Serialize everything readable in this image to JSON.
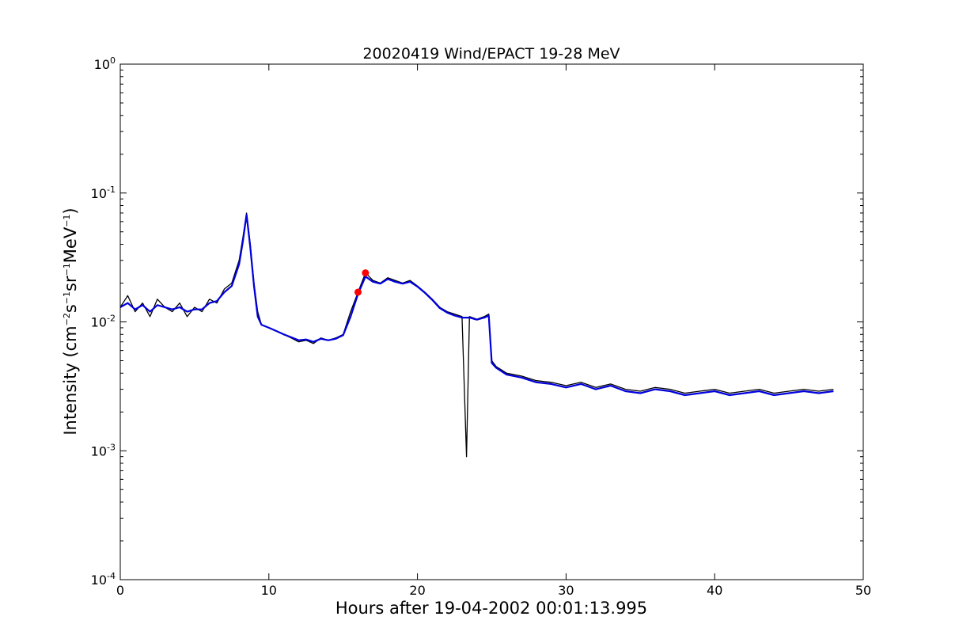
{
  "chart_data": {
    "type": "line",
    "title": "20020419 Wind/EPACT 19-28 MeV",
    "xlabel": "Hours after 19-04-2002 00:01:13.995",
    "ylabel": {
      "prefix": "Intensity (cm",
      "exp1": "−2",
      "mid1": "s",
      "exp2": "−1",
      "mid2": "sr",
      "exp3": "−1",
      "mid3": "MeV",
      "exp4": "−1",
      "suffix": ")"
    },
    "xlim": [
      0,
      50
    ],
    "ylim": [
      0.0001,
      1
    ],
    "yscale": "log",
    "grid": false,
    "xticks": [
      {
        "value": 0,
        "label": "0"
      },
      {
        "value": 10,
        "label": "10"
      },
      {
        "value": 20,
        "label": "20"
      },
      {
        "value": 30,
        "label": "30"
      },
      {
        "value": 40,
        "label": "40"
      },
      {
        "value": 50,
        "label": "50"
      }
    ],
    "yticks": [
      {
        "value": 0.0001,
        "base": "10",
        "exp": "-4"
      },
      {
        "value": 0.001,
        "base": "10",
        "exp": "-3"
      },
      {
        "value": 0.01,
        "base": "10",
        "exp": "-2"
      },
      {
        "value": 0.1,
        "base": "10",
        "exp": "-1"
      },
      {
        "value": 1,
        "base": "10",
        "exp": "0"
      }
    ],
    "series": [
      {
        "color": "#000000",
        "x": [
          0,
          0.5,
          1,
          1.5,
          2,
          2.5,
          3,
          3.5,
          4,
          4.5,
          5,
          5.5,
          6,
          6.5,
          7,
          7.5,
          8,
          8.25,
          8.5,
          8.75,
          9,
          9.25,
          9.5,
          10,
          10.5,
          11,
          11.5,
          12,
          12.5,
          13,
          13.5,
          14,
          14.5,
          15,
          15.5,
          16,
          16.5,
          17,
          17.5,
          18,
          18.5,
          19,
          19.5,
          20,
          20.5,
          21,
          21.5,
          22,
          22.5,
          23,
          23.3,
          23.5,
          24,
          24.5,
          24.8,
          25,
          25.3,
          26,
          27,
          28,
          29,
          30,
          31,
          32,
          33,
          34,
          35,
          36,
          37,
          38,
          39,
          40,
          41,
          42,
          43,
          44,
          45,
          46,
          47,
          48
        ],
        "y": [
          0.013,
          0.016,
          0.012,
          0.014,
          0.011,
          0.015,
          0.013,
          0.012,
          0.014,
          0.011,
          0.013,
          0.012,
          0.015,
          0.014,
          0.018,
          0.02,
          0.03,
          0.045,
          0.07,
          0.04,
          0.02,
          0.012,
          0.0095,
          0.009,
          0.0085,
          0.008,
          0.0075,
          0.007,
          0.0072,
          0.0068,
          0.0075,
          0.0072,
          0.0075,
          0.008,
          0.012,
          0.017,
          0.024,
          0.021,
          0.02,
          0.022,
          0.021,
          0.02,
          0.021,
          0.019,
          0.017,
          0.015,
          0.013,
          0.012,
          0.0115,
          0.011,
          0.0009,
          0.011,
          0.0105,
          0.011,
          0.0115,
          0.005,
          0.0045,
          0.004,
          0.0038,
          0.0035,
          0.0034,
          0.0032,
          0.0034,
          0.0031,
          0.0033,
          0.003,
          0.0029,
          0.0031,
          0.003,
          0.0028,
          0.0029,
          0.003,
          0.0028,
          0.0029,
          0.003,
          0.0028,
          0.0029,
          0.003,
          0.0029,
          0.003
        ]
      },
      {
        "color": "#0000dd",
        "x": [
          0,
          0.5,
          1,
          1.5,
          2,
          2.5,
          3,
          3.5,
          4,
          4.5,
          5,
          5.5,
          6,
          6.5,
          7,
          7.5,
          8,
          8.25,
          8.5,
          8.75,
          9,
          9.25,
          9.5,
          10,
          10.5,
          11,
          11.5,
          12,
          12.5,
          13,
          13.5,
          14,
          14.5,
          15,
          15.5,
          16,
          16.5,
          17,
          17.5,
          18,
          18.5,
          19,
          19.5,
          20,
          20.5,
          21,
          21.5,
          22,
          22.5,
          23,
          23.5,
          24,
          24.5,
          24.8,
          25,
          25.3,
          26,
          27,
          28,
          29,
          30,
          31,
          32,
          33,
          34,
          35,
          36,
          37,
          38,
          39,
          40,
          41,
          42,
          43,
          44,
          45,
          46,
          47,
          48
        ],
        "y": [
          0.013,
          0.014,
          0.0125,
          0.0135,
          0.012,
          0.0135,
          0.013,
          0.0125,
          0.013,
          0.012,
          0.0125,
          0.0125,
          0.014,
          0.0145,
          0.017,
          0.019,
          0.028,
          0.042,
          0.068,
          0.038,
          0.019,
          0.011,
          0.0095,
          0.009,
          0.0085,
          0.008,
          0.0076,
          0.0072,
          0.0073,
          0.007,
          0.0074,
          0.0072,
          0.0074,
          0.0079,
          0.011,
          0.0165,
          0.0225,
          0.0205,
          0.0198,
          0.0215,
          0.0205,
          0.0198,
          0.0205,
          0.0188,
          0.0168,
          0.0148,
          0.0128,
          0.0118,
          0.0112,
          0.0108,
          0.0108,
          0.0104,
          0.0108,
          0.0112,
          0.0048,
          0.0044,
          0.0039,
          0.0037,
          0.0034,
          0.0033,
          0.0031,
          0.0033,
          0.003,
          0.0032,
          0.0029,
          0.0028,
          0.003,
          0.0029,
          0.0027,
          0.0028,
          0.0029,
          0.0027,
          0.0028,
          0.0029,
          0.0027,
          0.0028,
          0.0029,
          0.0028,
          0.0029
        ]
      }
    ],
    "markers": [
      {
        "x": 16.0,
        "y": 0.017,
        "color": "#ff0000"
      },
      {
        "x": 16.5,
        "y": 0.024,
        "color": "#ff0000"
      }
    ]
  }
}
